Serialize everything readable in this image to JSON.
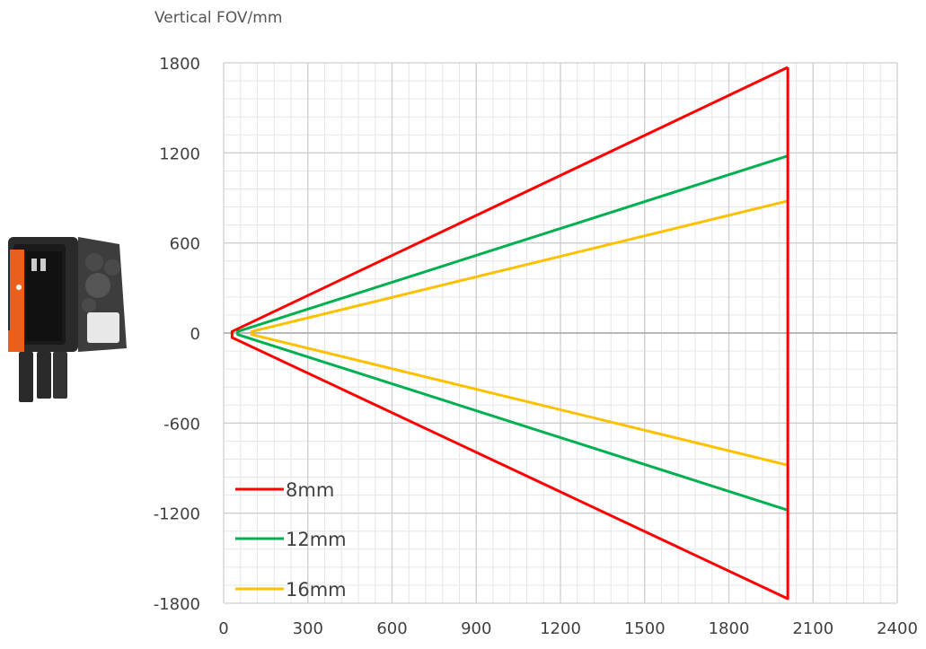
{
  "chart_data": {
    "type": "line",
    "ylabel": "Vertical FOV/mm",
    "xlabel": "",
    "xlim": [
      0,
      2400
    ],
    "ylim": [
      -1800,
      1800
    ],
    "xticks": [
      0,
      300,
      600,
      900,
      1200,
      1500,
      1800,
      2100,
      2400
    ],
    "yticks": [
      1800,
      1200,
      600,
      0,
      -600,
      -1200,
      -1800
    ],
    "grid": true,
    "legend_position": "bottom-left",
    "series": [
      {
        "name": "8mm",
        "color": "#ff0000",
        "x": [
          2010,
          30,
          30,
          2010,
          2010
        ],
        "y": [
          1770,
          10,
          -30,
          -1770,
          1770
        ]
      },
      {
        "name": "12mm",
        "color": "#00b050",
        "x": [
          2010,
          50,
          50,
          2010
        ],
        "y": [
          1180,
          10,
          -10,
          -1180
        ]
      },
      {
        "name": "16mm",
        "color": "#ffc000",
        "x": [
          2010,
          100,
          100,
          2010
        ],
        "y": [
          880,
          10,
          -10,
          -880
        ]
      }
    ]
  }
}
